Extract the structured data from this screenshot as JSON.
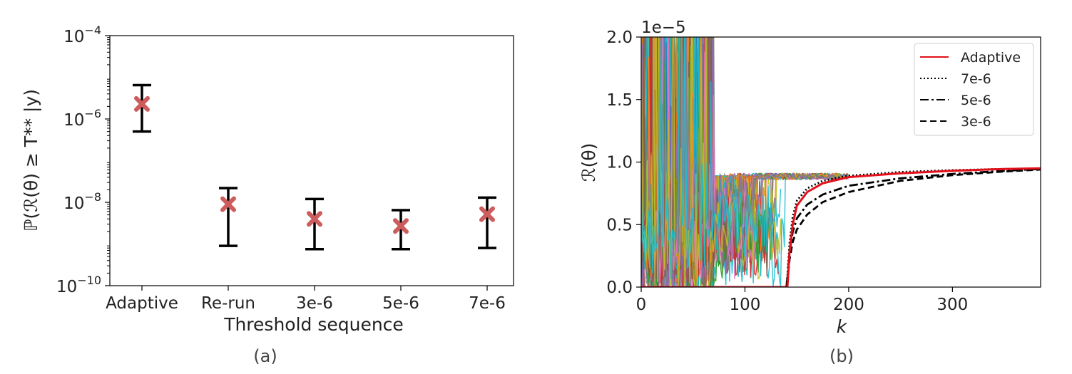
{
  "chart_data": [
    {
      "panel": "(a)",
      "type": "scatter",
      "categories": [
        "Adaptive",
        "Re-run",
        "3e-6",
        "5e-6",
        "7e-6"
      ],
      "values": [
        2.3e-06,
        9e-09,
        4e-09,
        2.7e-09,
        5.2e-09
      ],
      "error_low": [
        5e-07,
        9e-10,
        7.5e-10,
        7.5e-10,
        8e-10
      ],
      "error_high": [
        6.5e-06,
        2.2e-08,
        1.2e-08,
        6.5e-09,
        1.3e-08
      ],
      "xlabel": "Threshold sequence",
      "ylabel": "ℙ(ℛ(θ) ≥ T** |y)",
      "yscale": "log",
      "ylim": [
        1e-10,
        0.0001
      ],
      "ytick_labels": [
        {
          "value": 0.0001,
          "base": "10",
          "exp": "−4"
        },
        {
          "value": 1e-06,
          "base": "10",
          "exp": "−6"
        },
        {
          "value": 1e-08,
          "base": "10",
          "exp": "−8"
        },
        {
          "value": 1e-10,
          "base": "10",
          "exp": "−10"
        }
      ],
      "marker_color": "#cd5c5c",
      "errorbar_color": "#000000",
      "grid": false
    },
    {
      "panel": "(b)",
      "type": "line",
      "xlabel": "k",
      "ylabel": "ℛ(θ)",
      "xlim": [
        0,
        385
      ],
      "ylim": [
        0,
        2e-05
      ],
      "xticks": [
        0,
        100,
        200,
        300
      ],
      "xtick_labels": [
        "0",
        "100",
        "200",
        "300"
      ],
      "yticks": [
        0,
        0.5,
        1.0,
        1.5,
        2.0
      ],
      "ytick_labels": [
        "0.0",
        "0.5",
        "1.0",
        "1.5",
        "2.0"
      ],
      "offset_text": "1e−5",
      "legend_position": "upper right",
      "grid": false,
      "series": [
        {
          "name": "Adaptive",
          "color": "#e3101a",
          "style": "solid",
          "x": [
            0,
            140,
            141,
            143,
            146,
            150,
            160,
            175,
            200,
            250,
            300,
            350,
            385
          ],
          "y": [
            0,
            0,
            1e-07,
            2.8e-06,
            5e-06,
            6.5e-06,
            7.6e-06,
            8.3e-06,
            8.8e-06,
            9.1e-06,
            9.3e-06,
            9.45e-06,
            9.5e-06
          ]
        },
        {
          "name": "7e-6",
          "color": "#000000",
          "style": "dotted",
          "x": [
            0,
            140,
            141,
            143,
            146,
            150,
            160,
            175,
            200,
            250,
            300,
            350,
            385
          ],
          "y": [
            0,
            0,
            1e-06,
            3.5e-06,
            5.6e-06,
            6.9e-06,
            7.9e-06,
            8.5e-06,
            8.9e-06,
            9.2e-06,
            9.35e-06,
            9.45e-06,
            9.5e-06
          ]
        },
        {
          "name": "5e-6",
          "color": "#000000",
          "style": "dashdot",
          "x": [
            0,
            140,
            141,
            143,
            146,
            150,
            160,
            175,
            200,
            250,
            300,
            350,
            385
          ],
          "y": [
            0,
            0,
            8e-07,
            2.8e-06,
            4.4e-06,
            5.5e-06,
            6.6e-06,
            7.4e-06,
            8.1e-06,
            8.7e-06,
            9.05e-06,
            9.3e-06,
            9.45e-06
          ]
        },
        {
          "name": "3e-6",
          "color": "#000000",
          "style": "dashed",
          "x": [
            0,
            140,
            141,
            143,
            146,
            150,
            160,
            175,
            200,
            250,
            300,
            350,
            385
          ],
          "y": [
            0,
            0,
            6e-07,
            2.2e-06,
            3.6e-06,
            4.6e-06,
            5.8e-06,
            6.8e-06,
            7.6e-06,
            8.5e-06,
            8.95e-06,
            9.25e-06,
            9.4e-06
          ]
        }
      ],
      "noise_colors": [
        "#1f77b4",
        "#ff7f0e",
        "#2ca02c",
        "#d62728",
        "#9467bd",
        "#8c564b",
        "#e377c2",
        "#7f7f7f",
        "#bcbd22",
        "#17becf"
      ]
    }
  ],
  "captions": [
    "(a)",
    "(b)"
  ]
}
